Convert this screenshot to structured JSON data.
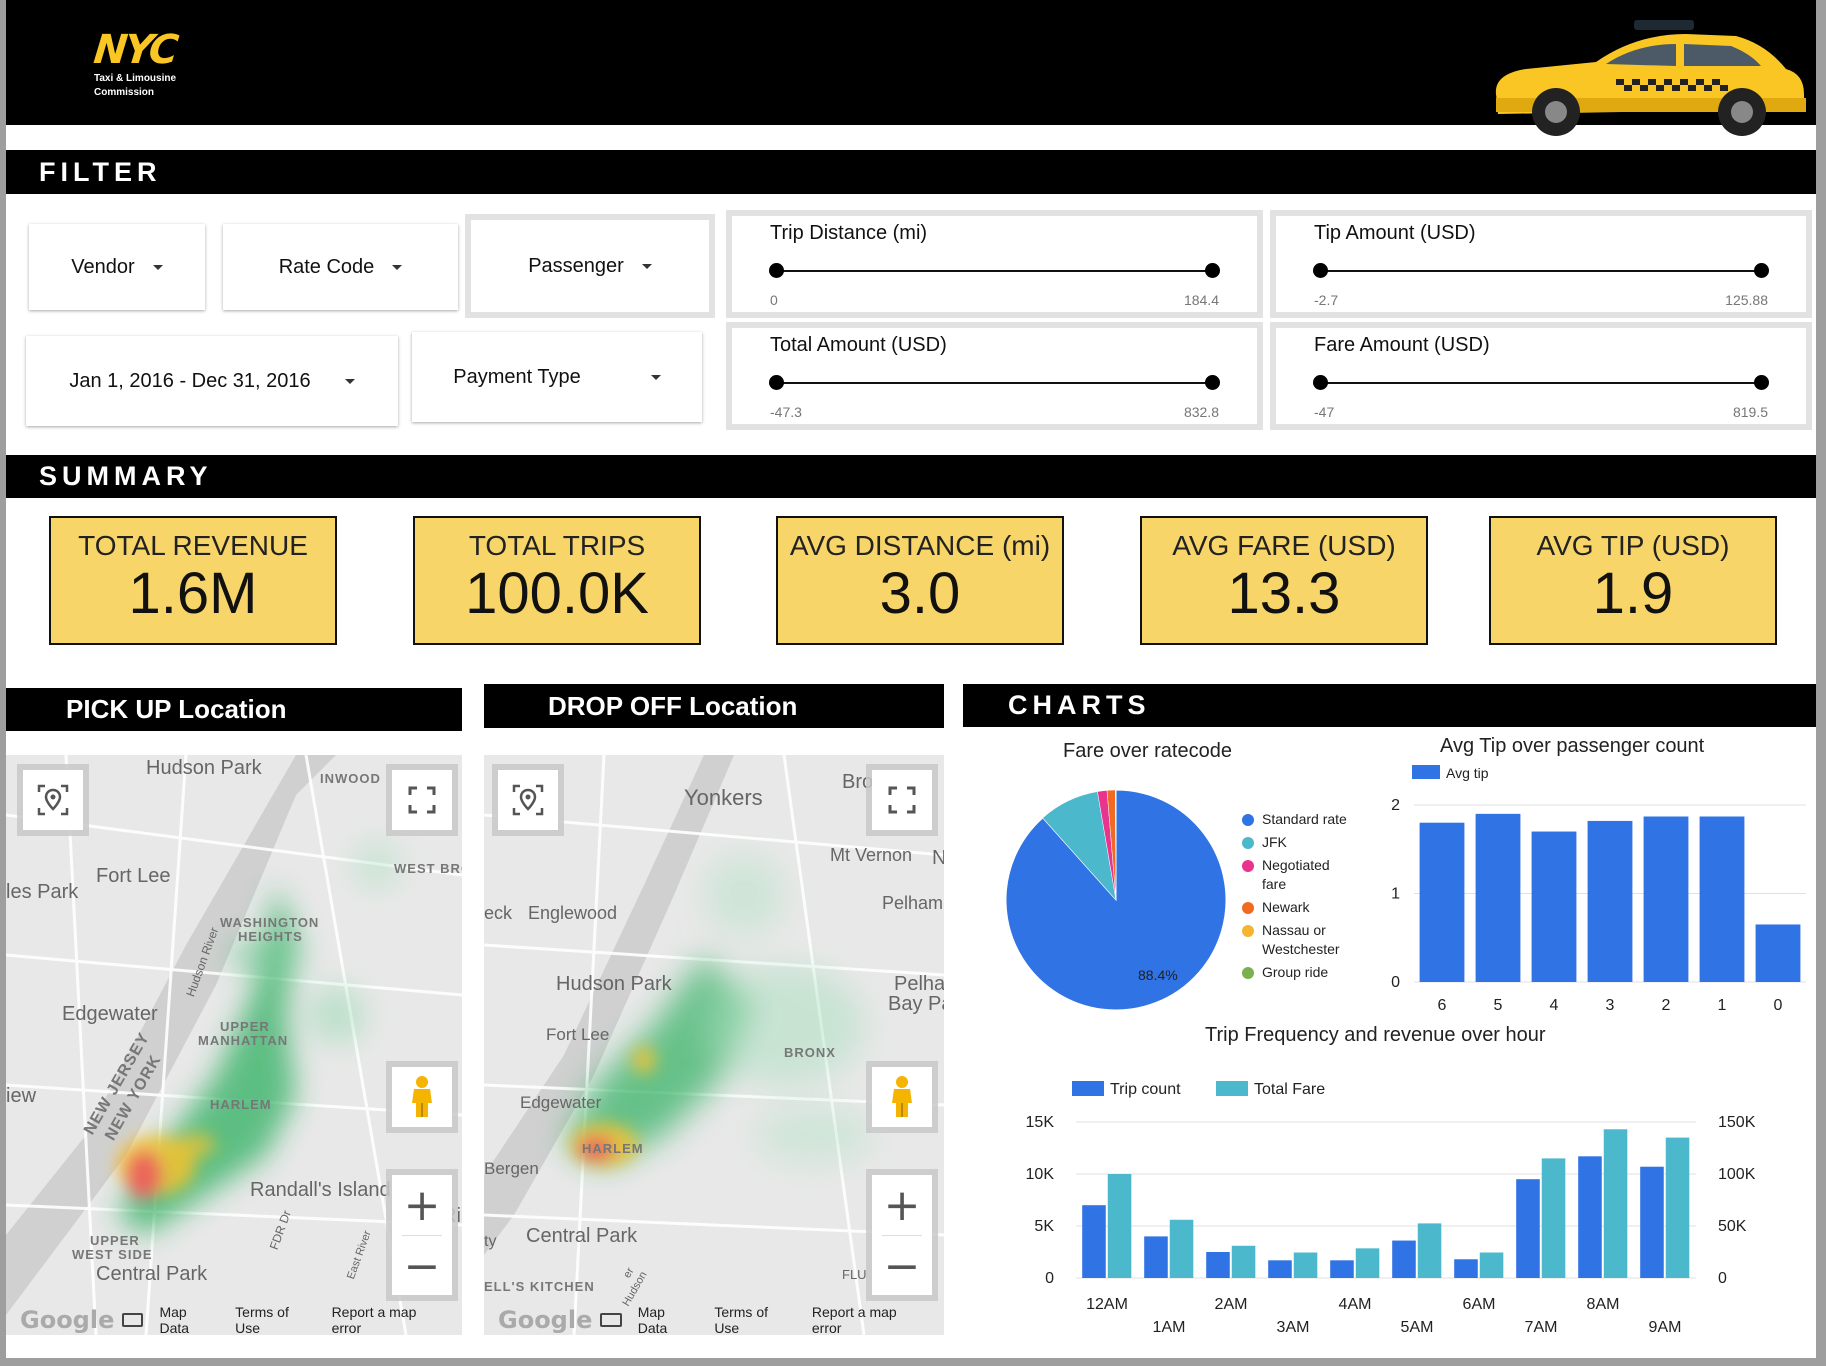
{
  "header": {
    "logo_main": "NYC",
    "logo_sub1": "Taxi & Limousine",
    "logo_sub2": "Commission"
  },
  "filter": {
    "title": "FILTER",
    "dropdowns": {
      "vendor": "Vendor",
      "rate_code": "Rate Code",
      "passenger": "Passenger",
      "date_range": "Jan 1, 2016 - Dec 31, 2016",
      "payment_type": "Payment Type"
    },
    "sliders": {
      "trip_distance": {
        "label": "Trip Distance (mi)",
        "min": "0",
        "max": "184.4"
      },
      "tip_amount": {
        "label": "Tip Amount (USD)",
        "min": "-2.7",
        "max": "125.88"
      },
      "total_amount": {
        "label": "Total Amount (USD)",
        "min": "-47.3",
        "max": "832.8"
      },
      "fare_amount": {
        "label": "Fare Amount (USD)",
        "min": "-47",
        "max": "819.5"
      }
    }
  },
  "summary": {
    "title": "SUMMARY",
    "kpis": [
      {
        "label": "TOTAL REVENUE",
        "value": "1.6M"
      },
      {
        "label": "TOTAL TRIPS",
        "value": "100.0K"
      },
      {
        "label": "AVG DISTANCE (mi)",
        "value": "3.0"
      },
      {
        "label": "AVG FARE (USD)",
        "value": "13.3"
      },
      {
        "label": "AVG TIP (USD)",
        "value": "1.9"
      }
    ]
  },
  "maps": {
    "pickup": {
      "title": "PICK UP Location",
      "places": [
        "Hudson Park",
        "INWOOD",
        "WEST BRO",
        "Fort Lee",
        "les Park",
        "WASHINGTON",
        "HEIGHTS",
        "Hudson River",
        "Edgewater",
        "UPPER",
        "MANHATTAN",
        "NEW JERSEY",
        "NEW YORK",
        "HARLEM",
        "iew",
        "Randall's Island",
        "FDR Dr",
        "Ri",
        "UPPER",
        "WEST SIDE",
        "Central Park",
        "East River"
      ]
    },
    "dropoff": {
      "title": "DROP OFF Location",
      "places": [
        "Yonkers",
        "Bro",
        "Mt Vernon",
        "N",
        "Pelham",
        "eck",
        "Englewood",
        "Hudson Park",
        "Pelha",
        "Bay Pa",
        "Fort Lee",
        "BRONX",
        "Edgewater",
        "HARLEM",
        "Bergen",
        "ty",
        "Central Park",
        "ELL'S KITCHEN",
        "FLU",
        "Hudson",
        "er"
      ]
    },
    "footer": {
      "logo": "Google",
      "map_data": "Map Data",
      "terms": "Terms of Use",
      "report": "Report a map error"
    }
  },
  "charts": {
    "title": "CHARTS",
    "pie_title": "Fare over ratecode",
    "bar_title": "Avg Tip over passenger count",
    "combo_title": "Trip Frequency and revenue over hour"
  },
  "chart_data": [
    {
      "type": "pie",
      "title": "Fare over ratecode",
      "labels": [
        "Standard rate",
        "JFK",
        "Negotiated fare",
        "Newark",
        "Nassau or Westchester",
        "Group ride"
      ],
      "legend_labels": [
        "Standard rate",
        "JFK",
        "Negotiated\nfare",
        "Newark",
        "Nassau or\nWestchester",
        "Group ride"
      ],
      "values": [
        88.4,
        8.9,
        1.4,
        1.2,
        0.05,
        0.05
      ],
      "slice_label": "88.4%",
      "colors": [
        "#2f73e4",
        "#4cb8cc",
        "#e8338f",
        "#f06a22",
        "#f6b530",
        "#7bb04f"
      ],
      "legend": "right"
    },
    {
      "type": "bar",
      "title": "Avg Tip over passenger count",
      "categories": [
        "6",
        "5",
        "4",
        "3",
        "2",
        "1",
        "0"
      ],
      "series": [
        {
          "name": "Avg tip",
          "values": [
            1.8,
            1.9,
            1.7,
            1.82,
            1.87,
            1.87,
            0.65
          ]
        }
      ],
      "ylim": [
        0,
        2
      ],
      "yticks": [
        0,
        1,
        2
      ],
      "color": "#2f73e4",
      "legend": "top-left",
      "grid": true
    },
    {
      "type": "bar",
      "title": "Trip Frequency and revenue over hour",
      "categories": [
        "12AM",
        "1AM",
        "2AM",
        "3AM",
        "4AM",
        "5AM",
        "6AM",
        "7AM",
        "8AM",
        "9AM"
      ],
      "series": [
        {
          "name": "Trip count",
          "axis": "left",
          "values": [
            7000,
            4000,
            2500,
            1700,
            1700,
            3600,
            1800,
            9500,
            11700,
            10700
          ],
          "color": "#2f73e4"
        },
        {
          "name": "Total Fare",
          "axis": "right",
          "values": [
            100000,
            56000,
            31000,
            24500,
            28500,
            52500,
            24500,
            115000,
            143000,
            135000
          ],
          "color": "#4cb8cc"
        }
      ],
      "ylim_left": [
        0,
        15000
      ],
      "ylim_right": [
        0,
        150000
      ],
      "yticks_left": [
        "0",
        "5K",
        "10K",
        "15K"
      ],
      "yticks_right": [
        "0",
        "50K",
        "100K",
        "150K"
      ],
      "legend": "top-left",
      "grid": true
    }
  ]
}
